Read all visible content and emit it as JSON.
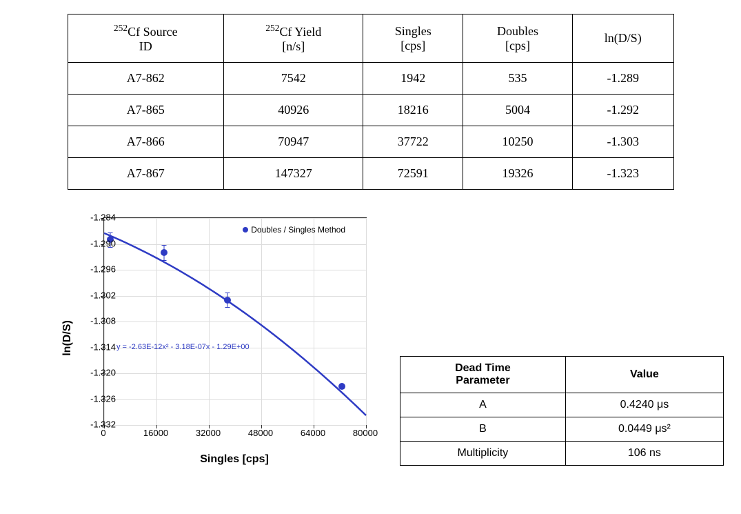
{
  "main_table": {
    "headers": {
      "source_id": "Cf Source\nID",
      "yield": "Cf Yield\n[n/s]",
      "singles": "Singles\n[cps]",
      "doubles": "Doubles\n[cps]",
      "ln_ds": "ln(D/S)"
    },
    "sup_prefix": "252",
    "rows": [
      {
        "id": "A7-862",
        "yield": "7542",
        "singles": "1942",
        "doubles": "535",
        "ln_ds": "-1.289"
      },
      {
        "id": "A7-865",
        "yield": "40926",
        "singles": "18216",
        "doubles": "5004",
        "ln_ds": "-1.292"
      },
      {
        "id": "A7-866",
        "yield": "70947",
        "singles": "37722",
        "doubles": "10250",
        "ln_ds": "-1.303"
      },
      {
        "id": "A7-867",
        "yield": "147327",
        "singles": "72591",
        "doubles": "19326",
        "ln_ds": "-1.323"
      }
    ]
  },
  "chart": {
    "y_label": "ln(D/S)",
    "x_label": "Singles [cps]",
    "legend_text": "Doubles / Singles Method",
    "equation": "y = -2.63E-12x² - 3.18E-07x - 1.29E+00",
    "y_min": -1.332,
    "y_max": -1.284,
    "y_ticks": [
      -1.284,
      -1.29,
      -1.296,
      -1.302,
      -1.308,
      -1.314,
      -1.32,
      -1.326,
      -1.332
    ],
    "x_min": 0,
    "x_max": 80000,
    "x_ticks": [
      0,
      16000,
      32000,
      48000,
      64000,
      80000
    ],
    "point_color": "#2e3bc4",
    "line_color": "#2e3bc4",
    "grid_color": "#dddddd",
    "data_points": [
      {
        "x": 1942,
        "y": -1.289,
        "err": 0.0017
      },
      {
        "x": 18216,
        "y": -1.292,
        "err": 0.0017
      },
      {
        "x": 37722,
        "y": -1.303,
        "err": 0.0017
      },
      {
        "x": 72591,
        "y": -1.323,
        "err": 0.0005
      }
    ]
  },
  "param_table": {
    "headers": {
      "param": "Dead Time\nParameter",
      "value": "Value"
    },
    "rows": [
      {
        "param": "A",
        "value": "0.4240 μs"
      },
      {
        "param": "B",
        "value": "0.0449 μs²"
      },
      {
        "param": "Multiplicity",
        "value": "106 ns"
      }
    ]
  }
}
